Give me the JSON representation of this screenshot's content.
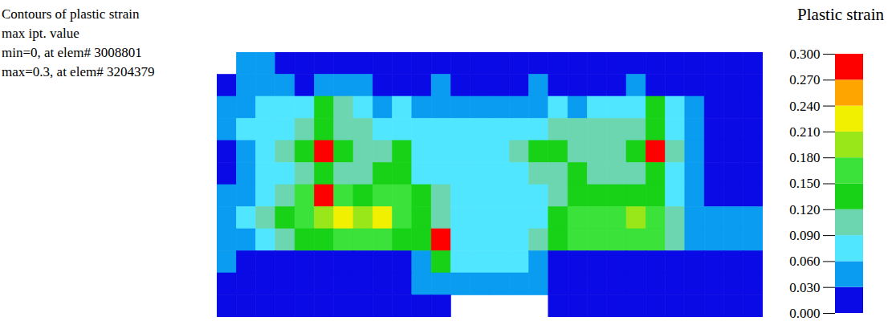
{
  "chart_data": {
    "type": "heatmap",
    "annotations": [
      "Contours of plastic strain",
      "max ipt. value",
      "min=0, at elem# 3008801",
      "max=0.3, at elem# 3204379"
    ],
    "tick_labels": false,
    "colorbar": {
      "label": "Plastic strain",
      "range": [
        0,
        0.3
      ],
      "ticks": [
        {
          "value": 0,
          "label": "0.000"
        },
        {
          "value": 0.03,
          "label": "0.030"
        },
        {
          "value": 0.06,
          "label": "0.060"
        },
        {
          "value": 0.09,
          "label": "0.090"
        },
        {
          "value": 0.12,
          "label": "0.120"
        },
        {
          "value": 0.15,
          "label": "0.150"
        },
        {
          "value": 0.18,
          "label": "0.180"
        },
        {
          "value": 0.21,
          "label": "0.210"
        },
        {
          "value": 0.24,
          "label": "0.240"
        },
        {
          "value": 0.27,
          "label": "0.270"
        },
        {
          "value": 0.3,
          "label": "0.300"
        }
      ],
      "colors": [
        "#0a0ae6",
        "#0a9cf0",
        "#50e6ff",
        "#6cd6b0",
        "#17d217",
        "#3ae23a",
        "#99e619",
        "#f0f000",
        "#ffa500",
        "#ff0000"
      ]
    },
    "cells": [
      [
        null,
        0.04,
        0.03,
        0.01,
        0.01,
        0.01,
        0.01,
        0.01,
        0.01,
        0.01,
        0.01,
        0.01,
        0.01,
        0.01,
        0.01,
        0.01,
        0.01,
        0.01,
        0.01,
        0.01,
        0.01,
        0.01,
        0.01,
        0.01,
        0.01,
        0.01,
        0.01,
        0.01
      ],
      [
        0.02,
        0.04,
        0.04,
        0.03,
        0.02,
        0.03,
        0.04,
        0.03,
        0.02,
        0.02,
        0.02,
        0.03,
        0.02,
        0.02,
        0.02,
        0.02,
        0.03,
        0.02,
        0.02,
        0.02,
        0.02,
        0.03,
        0.02,
        0.02,
        0.02,
        0.02,
        0.01,
        0.01
      ],
      [
        0.03,
        0.05,
        0.07,
        0.06,
        0.08,
        0.12,
        0.11,
        0.07,
        0.05,
        0.06,
        0.05,
        0.04,
        0.05,
        0.04,
        0.04,
        0.05,
        0.05,
        0.06,
        0.05,
        0.06,
        0.07,
        0.08,
        0.13,
        0.06,
        0.03,
        0.02,
        0.02,
        0.01
      ],
      [
        0.03,
        0.06,
        0.07,
        0.08,
        0.1,
        0.13,
        0.11,
        0.09,
        0.08,
        0.08,
        0.07,
        0.06,
        0.06,
        0.07,
        0.06,
        0.07,
        0.08,
        0.09,
        0.09,
        0.1,
        0.1,
        0.11,
        0.13,
        0.08,
        0.04,
        0.02,
        0.02,
        0.01
      ],
      [
        0.02,
        0.03,
        0.07,
        0.09,
        0.13,
        0.3,
        0.13,
        0.1,
        0.1,
        0.12,
        0.07,
        0.07,
        0.06,
        0.07,
        0.07,
        0.09,
        0.12,
        0.12,
        0.1,
        0.1,
        0.1,
        0.13,
        0.29,
        0.1,
        0.05,
        0.02,
        0.02,
        0.01
      ],
      [
        0.02,
        0.04,
        0.06,
        0.08,
        0.1,
        0.14,
        0.1,
        0.09,
        0.12,
        0.12,
        0.08,
        0.06,
        0.06,
        0.06,
        0.07,
        0.08,
        0.09,
        0.1,
        0.12,
        0.1,
        0.1,
        0.1,
        0.12,
        0.06,
        0.03,
        0.02,
        0.02,
        0.02
      ],
      [
        0.03,
        0.05,
        0.07,
        0.1,
        0.17,
        0.29,
        0.16,
        0.13,
        0.15,
        0.16,
        0.12,
        0.09,
        0.07,
        0.07,
        0.07,
        0.07,
        0.08,
        0.1,
        0.12,
        0.14,
        0.13,
        0.12,
        0.12,
        0.08,
        0.04,
        0.02,
        0.02,
        0.02
      ],
      [
        0.04,
        0.06,
        0.09,
        0.12,
        0.17,
        0.2,
        0.21,
        0.2,
        0.21,
        0.17,
        0.12,
        0.09,
        0.07,
        0.07,
        0.07,
        0.07,
        0.08,
        0.12,
        0.15,
        0.16,
        0.17,
        0.2,
        0.15,
        0.1,
        0.05,
        0.03,
        0.03,
        0.03
      ],
      [
        0.04,
        0.05,
        0.08,
        0.1,
        0.12,
        0.12,
        0.15,
        0.15,
        0.15,
        0.13,
        0.12,
        0.29,
        0.08,
        0.06,
        0.06,
        0.06,
        0.09,
        0.14,
        0.15,
        0.15,
        0.15,
        0.15,
        0.15,
        0.1,
        0.05,
        0.03,
        0.03,
        0.04
      ],
      [
        0.03,
        0.01,
        0.01,
        0.01,
        0.01,
        0.01,
        0.01,
        0.01,
        0.01,
        0.01,
        0.05,
        0.12,
        0.06,
        0.06,
        0.06,
        0.06,
        0.05,
        0.01,
        0.01,
        0.01,
        0.01,
        0.01,
        0.01,
        0.01,
        0.01,
        0.01,
        0.01,
        0.02
      ],
      [
        0.02,
        0.01,
        0.02,
        0.01,
        0.01,
        0.01,
        0.01,
        0.01,
        0.02,
        0.02,
        0.03,
        0.04,
        0.04,
        0.04,
        0.04,
        0.04,
        0.03,
        0.02,
        0.01,
        0.01,
        0.01,
        0.01,
        0.02,
        0.01,
        0.01,
        0.01,
        0.01,
        0.02
      ],
      [
        0.01,
        0.01,
        0.01,
        0.01,
        0.01,
        0.01,
        0.01,
        0.01,
        0.01,
        0.02,
        0.02,
        0.02,
        null,
        null,
        null,
        null,
        null,
        0.02,
        0.01,
        0.01,
        0.01,
        0.01,
        0.01,
        0.01,
        0.01,
        0.01,
        0.01,
        0.01
      ]
    ]
  }
}
